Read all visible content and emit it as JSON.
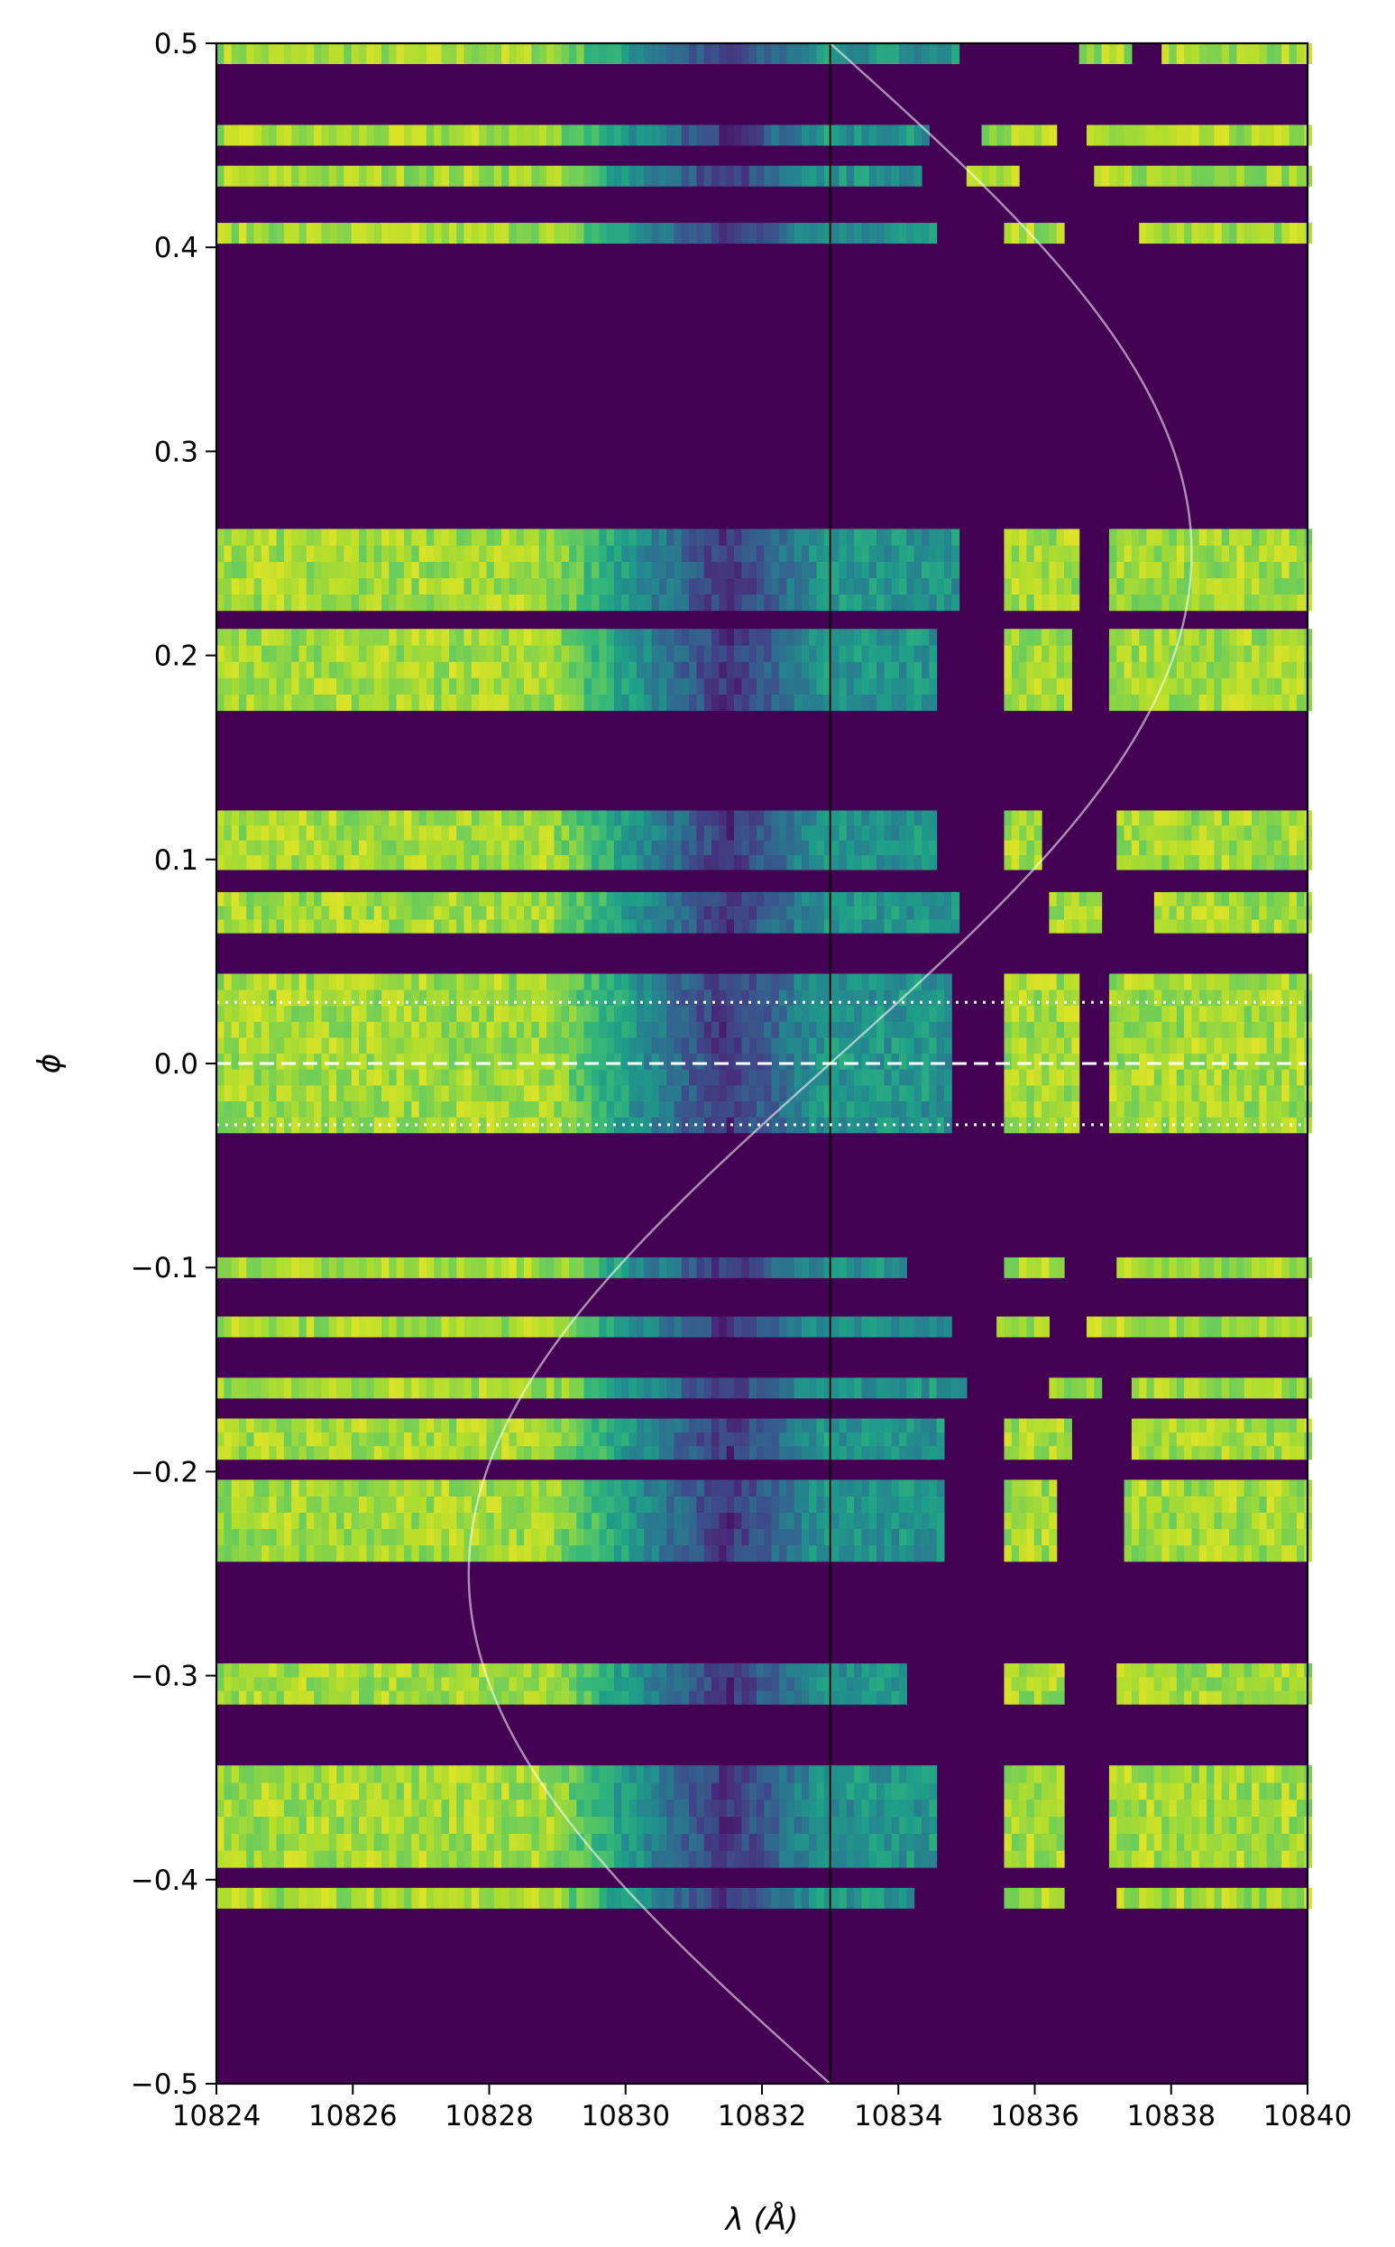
{
  "chart_data": {
    "type": "heatmap",
    "xlabel": "λ (Å)",
    "ylabel": "ϕ",
    "xlim": [
      10824,
      10840
    ],
    "ylim": [
      -0.5,
      0.5
    ],
    "xticks": [
      10824,
      10826,
      10828,
      10830,
      10832,
      10834,
      10836,
      10838,
      10840
    ],
    "yticks": [
      -0.5,
      -0.4,
      -0.3,
      -0.2,
      -0.1,
      0.0,
      0.1,
      0.2,
      0.3,
      0.4,
      0.5
    ],
    "ytick_labels": [
      "−0.5",
      "−0.4",
      "−0.3",
      "−0.2",
      "−0.1",
      "0.0",
      "0.1",
      "0.2",
      "0.3",
      "0.4",
      "0.5"
    ],
    "colormap": "viridis",
    "background_color": "#440154",
    "colors": {
      "high": "#d8e219",
      "mid": "#21918c",
      "low": "#472d7b"
    },
    "rest_wavelength": 10833.0,
    "velocity_curve": {
      "center": 10833.0,
      "amplitude": 5.3,
      "color": "#ffffff",
      "opacity": 0.55
    },
    "reference_lines": [
      {
        "phi": 0.0,
        "style": "dashed",
        "color": "#ffffff"
      },
      {
        "phi": 0.03,
        "style": "dotted",
        "color": "#ffffff"
      },
      {
        "phi": -0.03,
        "style": "dotted",
        "color": "#ffffff"
      }
    ],
    "absorption_center": 10831.5,
    "bands": [
      {
        "phi0": 0.49,
        "phi1": 0.5,
        "gaps": [
          [
            10834.9,
            10836.6
          ],
          [
            10837.4,
            10837.9
          ]
        ]
      },
      {
        "phi0": 0.45,
        "phi1": 0.46,
        "gaps": [
          [
            10834.5,
            10835.2
          ],
          [
            10836.3,
            10836.8
          ]
        ]
      },
      {
        "phi0": 0.43,
        "phi1": 0.44,
        "gaps": [
          [
            10834.3,
            10835.0
          ],
          [
            10835.8,
            10836.9
          ]
        ]
      },
      {
        "phi0": 0.402,
        "phi1": 0.412,
        "gaps": [
          [
            10834.6,
            10835.6
          ],
          [
            10836.4,
            10837.5
          ]
        ]
      },
      {
        "phi0": 0.222,
        "phi1": 0.262,
        "gaps": [
          [
            10834.9,
            10835.6
          ],
          [
            10836.6,
            10837.1
          ]
        ]
      },
      {
        "phi0": 0.173,
        "phi1": 0.213,
        "gaps": [
          [
            10834.6,
            10835.6
          ],
          [
            10836.5,
            10837.1
          ]
        ]
      },
      {
        "phi0": 0.095,
        "phi1": 0.124,
        "gaps": [
          [
            10834.6,
            10835.6
          ],
          [
            10836.1,
            10837.2
          ]
        ]
      },
      {
        "phi0": 0.064,
        "phi1": 0.084,
        "gaps": [
          [
            10834.9,
            10836.2
          ],
          [
            10837.0,
            10837.8
          ]
        ]
      },
      {
        "phi0": -0.034,
        "phi1": 0.044,
        "gaps": [
          [
            10834.8,
            10835.6
          ],
          [
            10836.6,
            10837.1
          ]
        ]
      },
      {
        "phi0": -0.105,
        "phi1": -0.095,
        "gaps": [
          [
            10834.1,
            10835.6
          ],
          [
            10836.4,
            10837.2
          ]
        ]
      },
      {
        "phi0": -0.134,
        "phi1": -0.124,
        "gaps": [
          [
            10834.8,
            10835.4
          ],
          [
            10836.2,
            10836.8
          ]
        ]
      },
      {
        "phi0": -0.164,
        "phi1": -0.154,
        "gaps": [
          [
            10835.0,
            10836.2
          ],
          [
            10837.0,
            10837.4
          ]
        ]
      },
      {
        "phi0": -0.194,
        "phi1": -0.174,
        "gaps": [
          [
            10834.7,
            10835.6
          ],
          [
            10836.5,
            10837.4
          ]
        ]
      },
      {
        "phi0": -0.244,
        "phi1": -0.204,
        "gaps": [
          [
            10834.7,
            10835.6
          ],
          [
            10836.3,
            10837.3
          ]
        ]
      },
      {
        "phi0": -0.314,
        "phi1": -0.294,
        "gaps": [
          [
            10834.1,
            10835.6
          ],
          [
            10836.4,
            10837.2
          ]
        ]
      },
      {
        "phi0": -0.394,
        "phi1": -0.344,
        "gaps": [
          [
            10834.6,
            10835.6
          ],
          [
            10836.4,
            10837.1
          ]
        ]
      },
      {
        "phi0": -0.414,
        "phi1": -0.404,
        "gaps": [
          [
            10834.2,
            10835.6
          ],
          [
            10836.4,
            10837.2
          ]
        ]
      }
    ]
  }
}
